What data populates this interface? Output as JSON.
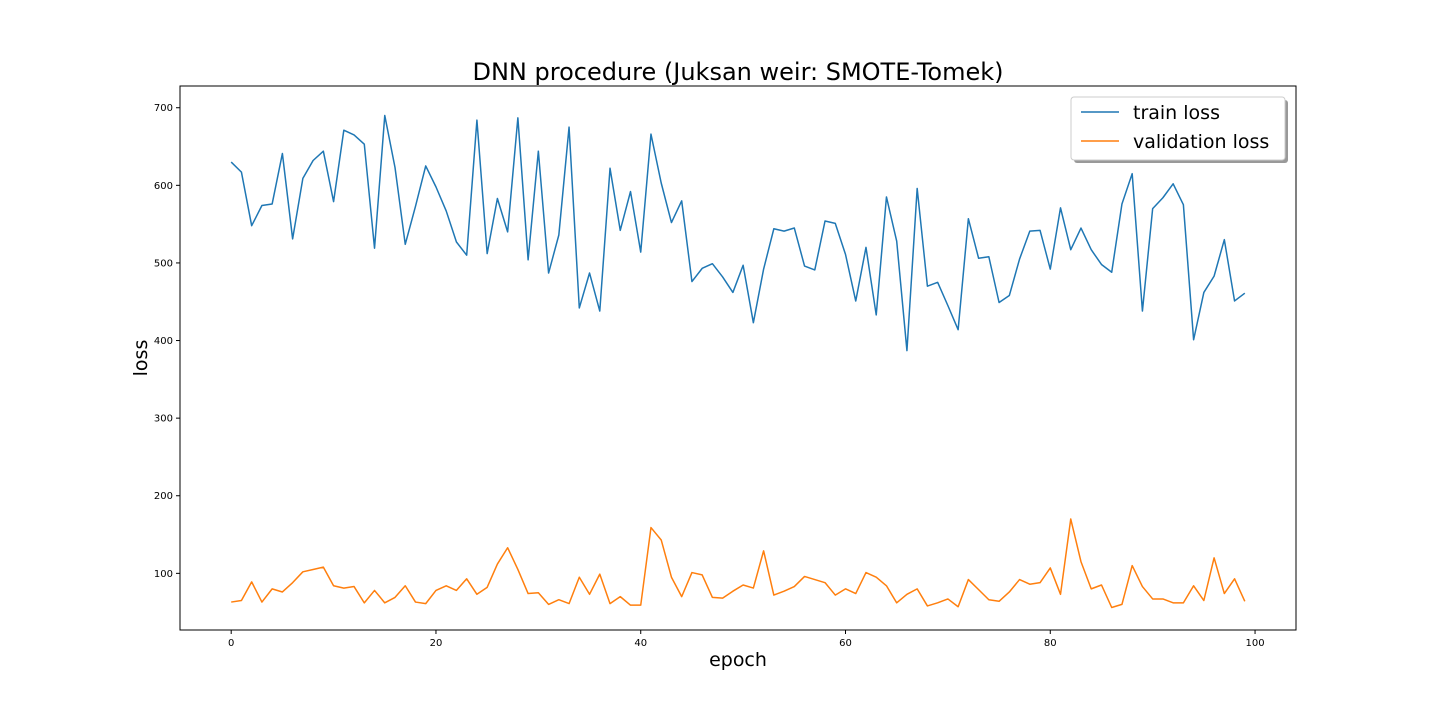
{
  "chart_data": {
    "type": "line",
    "title": "DNN procedure (Juksan weir: SMOTE-Tomek)",
    "xlabel": "epoch",
    "ylabel": "loss",
    "xlim": [
      -5,
      104
    ],
    "ylim": [
      27,
      728
    ],
    "xticks": [
      0,
      20,
      40,
      60,
      80,
      100
    ],
    "yticks": [
      100,
      200,
      300,
      400,
      500,
      600,
      700
    ],
    "grid": false,
    "legend_position": "upper right",
    "series": [
      {
        "name": "train loss",
        "color": "#1f77b4",
        "values": [
          630,
          617,
          548,
          574,
          576,
          641,
          531,
          609,
          632,
          644,
          579,
          671,
          665,
          653,
          519,
          690,
          623,
          524,
          573,
          625,
          598,
          567,
          527,
          510,
          684,
          512,
          583,
          540,
          687,
          504,
          644,
          487,
          536,
          675,
          442,
          487,
          438,
          622,
          542,
          592,
          514,
          666,
          603,
          552,
          580,
          476,
          493,
          499,
          482,
          462,
          497,
          423,
          492,
          544,
          541,
          545,
          496,
          491,
          554,
          551,
          511,
          451,
          520,
          433,
          585,
          528,
          387,
          596,
          470,
          475,
          445,
          414,
          557,
          506,
          508,
          449,
          458,
          505,
          541,
          542,
          492,
          571,
          517,
          545,
          517,
          498,
          488,
          576,
          615,
          438,
          570,
          584,
          602,
          575,
          401,
          462,
          483,
          530,
          451,
          461
        ]
      },
      {
        "name": "validation loss",
        "color": "#ff7f0e",
        "values": [
          63,
          65,
          89,
          63,
          80,
          76,
          88,
          102,
          105,
          108,
          84,
          81,
          83,
          62,
          78,
          62,
          69,
          84,
          63,
          61,
          78,
          84,
          78,
          93,
          73,
          82,
          112,
          133,
          105,
          74,
          75,
          60,
          66,
          61,
          95,
          73,
          99,
          61,
          70,
          59,
          59,
          159,
          143,
          95,
          70,
          101,
          98,
          69,
          68,
          77,
          85,
          81,
          129,
          72,
          77,
          83,
          96,
          92,
          88,
          72,
          80,
          74,
          101,
          95,
          84,
          62,
          73,
          80,
          58,
          62,
          67,
          57,
          92,
          79,
          66,
          64,
          76,
          92,
          86,
          88,
          107,
          73,
          170,
          115,
          80,
          85,
          56,
          60,
          110,
          83,
          67,
          67,
          62,
          62,
          84,
          65,
          120,
          74,
          93,
          64
        ]
      }
    ]
  }
}
